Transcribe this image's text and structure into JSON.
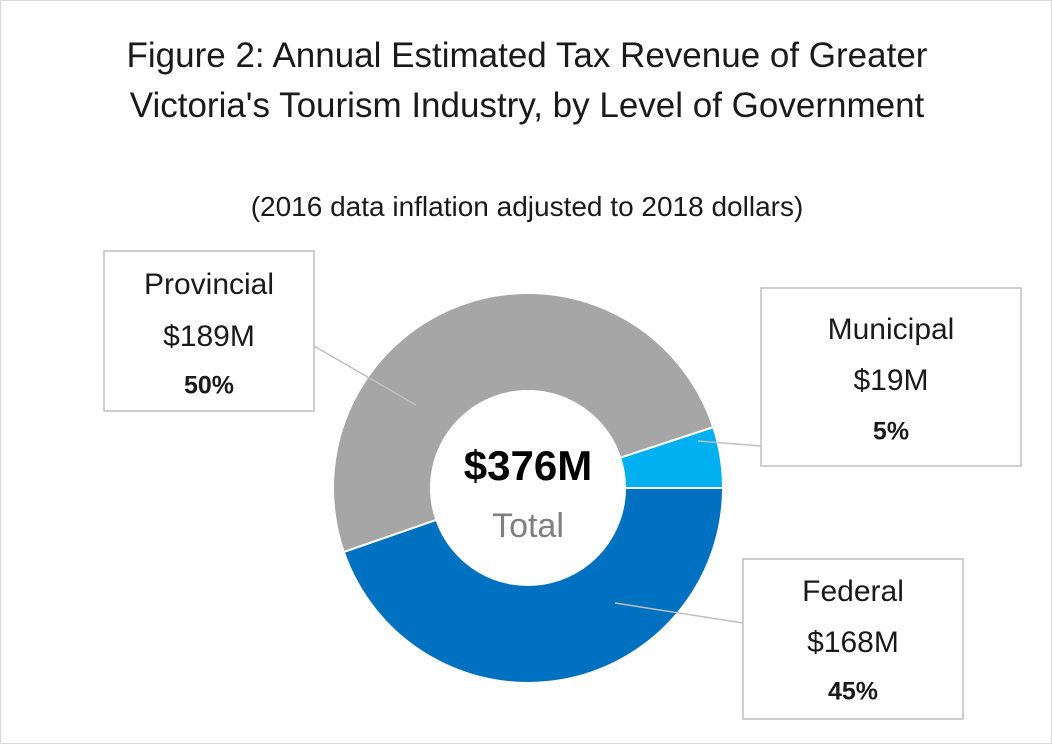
{
  "chart_data": {
    "type": "donut",
    "title": "Figure 2: Annual Estimated Tax Revenue of Greater Victoria's Tourism Industry, by Level of Government",
    "subtitle": "(2016 data inflation adjusted to 2018 dollars)",
    "categories": [
      "Municipal",
      "Federal",
      "Provincial"
    ],
    "values": [
      19,
      168,
      189
    ],
    "value_labels": [
      "$19M",
      "$168M",
      "$189M"
    ],
    "percents": [
      5,
      45,
      50
    ],
    "percent_labels": [
      "5%",
      "45%",
      "50%"
    ],
    "colors": [
      "#00b0f0",
      "#0070c0",
      "#a6a6a6"
    ],
    "center_label": "$376M",
    "center_sublabel": "Total"
  }
}
